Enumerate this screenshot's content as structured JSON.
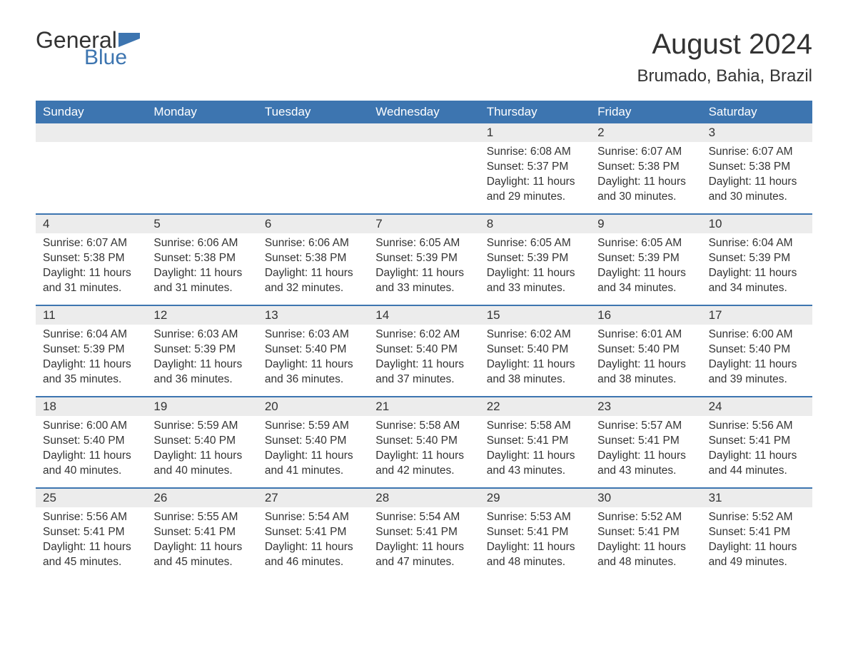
{
  "logo": {
    "text_top": "General",
    "text_bottom": "Blue",
    "accent_color": "#3d75b0",
    "text_color": "#333333"
  },
  "title": "August 2024",
  "location": "Brumado, Bahia, Brazil",
  "colors": {
    "header_bg": "#3d75b0",
    "header_text": "#ffffff",
    "daynum_bg": "#ececec",
    "body_text": "#333333",
    "divider": "#3d75b0",
    "page_bg": "#ffffff"
  },
  "day_names": [
    "Sunday",
    "Monday",
    "Tuesday",
    "Wednesday",
    "Thursday",
    "Friday",
    "Saturday"
  ],
  "weeks": [
    [
      {
        "n": "",
        "sunrise": "",
        "sunset": "",
        "daylight": ""
      },
      {
        "n": "",
        "sunrise": "",
        "sunset": "",
        "daylight": ""
      },
      {
        "n": "",
        "sunrise": "",
        "sunset": "",
        "daylight": ""
      },
      {
        "n": "",
        "sunrise": "",
        "sunset": "",
        "daylight": ""
      },
      {
        "n": "1",
        "sunrise": "Sunrise: 6:08 AM",
        "sunset": "Sunset: 5:37 PM",
        "daylight": "Daylight: 11 hours and 29 minutes."
      },
      {
        "n": "2",
        "sunrise": "Sunrise: 6:07 AM",
        "sunset": "Sunset: 5:38 PM",
        "daylight": "Daylight: 11 hours and 30 minutes."
      },
      {
        "n": "3",
        "sunrise": "Sunrise: 6:07 AM",
        "sunset": "Sunset: 5:38 PM",
        "daylight": "Daylight: 11 hours and 30 minutes."
      }
    ],
    [
      {
        "n": "4",
        "sunrise": "Sunrise: 6:07 AM",
        "sunset": "Sunset: 5:38 PM",
        "daylight": "Daylight: 11 hours and 31 minutes."
      },
      {
        "n": "5",
        "sunrise": "Sunrise: 6:06 AM",
        "sunset": "Sunset: 5:38 PM",
        "daylight": "Daylight: 11 hours and 31 minutes."
      },
      {
        "n": "6",
        "sunrise": "Sunrise: 6:06 AM",
        "sunset": "Sunset: 5:38 PM",
        "daylight": "Daylight: 11 hours and 32 minutes."
      },
      {
        "n": "7",
        "sunrise": "Sunrise: 6:05 AM",
        "sunset": "Sunset: 5:39 PM",
        "daylight": "Daylight: 11 hours and 33 minutes."
      },
      {
        "n": "8",
        "sunrise": "Sunrise: 6:05 AM",
        "sunset": "Sunset: 5:39 PM",
        "daylight": "Daylight: 11 hours and 33 minutes."
      },
      {
        "n": "9",
        "sunrise": "Sunrise: 6:05 AM",
        "sunset": "Sunset: 5:39 PM",
        "daylight": "Daylight: 11 hours and 34 minutes."
      },
      {
        "n": "10",
        "sunrise": "Sunrise: 6:04 AM",
        "sunset": "Sunset: 5:39 PM",
        "daylight": "Daylight: 11 hours and 34 minutes."
      }
    ],
    [
      {
        "n": "11",
        "sunrise": "Sunrise: 6:04 AM",
        "sunset": "Sunset: 5:39 PM",
        "daylight": "Daylight: 11 hours and 35 minutes."
      },
      {
        "n": "12",
        "sunrise": "Sunrise: 6:03 AM",
        "sunset": "Sunset: 5:39 PM",
        "daylight": "Daylight: 11 hours and 36 minutes."
      },
      {
        "n": "13",
        "sunrise": "Sunrise: 6:03 AM",
        "sunset": "Sunset: 5:40 PM",
        "daylight": "Daylight: 11 hours and 36 minutes."
      },
      {
        "n": "14",
        "sunrise": "Sunrise: 6:02 AM",
        "sunset": "Sunset: 5:40 PM",
        "daylight": "Daylight: 11 hours and 37 minutes."
      },
      {
        "n": "15",
        "sunrise": "Sunrise: 6:02 AM",
        "sunset": "Sunset: 5:40 PM",
        "daylight": "Daylight: 11 hours and 38 minutes."
      },
      {
        "n": "16",
        "sunrise": "Sunrise: 6:01 AM",
        "sunset": "Sunset: 5:40 PM",
        "daylight": "Daylight: 11 hours and 38 minutes."
      },
      {
        "n": "17",
        "sunrise": "Sunrise: 6:00 AM",
        "sunset": "Sunset: 5:40 PM",
        "daylight": "Daylight: 11 hours and 39 minutes."
      }
    ],
    [
      {
        "n": "18",
        "sunrise": "Sunrise: 6:00 AM",
        "sunset": "Sunset: 5:40 PM",
        "daylight": "Daylight: 11 hours and 40 minutes."
      },
      {
        "n": "19",
        "sunrise": "Sunrise: 5:59 AM",
        "sunset": "Sunset: 5:40 PM",
        "daylight": "Daylight: 11 hours and 40 minutes."
      },
      {
        "n": "20",
        "sunrise": "Sunrise: 5:59 AM",
        "sunset": "Sunset: 5:40 PM",
        "daylight": "Daylight: 11 hours and 41 minutes."
      },
      {
        "n": "21",
        "sunrise": "Sunrise: 5:58 AM",
        "sunset": "Sunset: 5:40 PM",
        "daylight": "Daylight: 11 hours and 42 minutes."
      },
      {
        "n": "22",
        "sunrise": "Sunrise: 5:58 AM",
        "sunset": "Sunset: 5:41 PM",
        "daylight": "Daylight: 11 hours and 43 minutes."
      },
      {
        "n": "23",
        "sunrise": "Sunrise: 5:57 AM",
        "sunset": "Sunset: 5:41 PM",
        "daylight": "Daylight: 11 hours and 43 minutes."
      },
      {
        "n": "24",
        "sunrise": "Sunrise: 5:56 AM",
        "sunset": "Sunset: 5:41 PM",
        "daylight": "Daylight: 11 hours and 44 minutes."
      }
    ],
    [
      {
        "n": "25",
        "sunrise": "Sunrise: 5:56 AM",
        "sunset": "Sunset: 5:41 PM",
        "daylight": "Daylight: 11 hours and 45 minutes."
      },
      {
        "n": "26",
        "sunrise": "Sunrise: 5:55 AM",
        "sunset": "Sunset: 5:41 PM",
        "daylight": "Daylight: 11 hours and 45 minutes."
      },
      {
        "n": "27",
        "sunrise": "Sunrise: 5:54 AM",
        "sunset": "Sunset: 5:41 PM",
        "daylight": "Daylight: 11 hours and 46 minutes."
      },
      {
        "n": "28",
        "sunrise": "Sunrise: 5:54 AM",
        "sunset": "Sunset: 5:41 PM",
        "daylight": "Daylight: 11 hours and 47 minutes."
      },
      {
        "n": "29",
        "sunrise": "Sunrise: 5:53 AM",
        "sunset": "Sunset: 5:41 PM",
        "daylight": "Daylight: 11 hours and 48 minutes."
      },
      {
        "n": "30",
        "sunrise": "Sunrise: 5:52 AM",
        "sunset": "Sunset: 5:41 PM",
        "daylight": "Daylight: 11 hours and 48 minutes."
      },
      {
        "n": "31",
        "sunrise": "Sunrise: 5:52 AM",
        "sunset": "Sunset: 5:41 PM",
        "daylight": "Daylight: 11 hours and 49 minutes."
      }
    ]
  ]
}
